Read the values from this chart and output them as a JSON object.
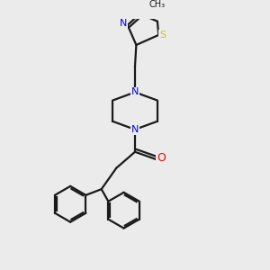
{
  "bg_color": "#ebebeb",
  "bond_color": "#1a1a1a",
  "N_color": "#0000ff",
  "O_color": "#ff0000",
  "S_color": "#cccc00",
  "linewidth": 1.6,
  "figsize": [
    3.0,
    3.0
  ],
  "dpi": 100,
  "xlim": [
    0,
    10
  ],
  "ylim": [
    0,
    10
  ]
}
